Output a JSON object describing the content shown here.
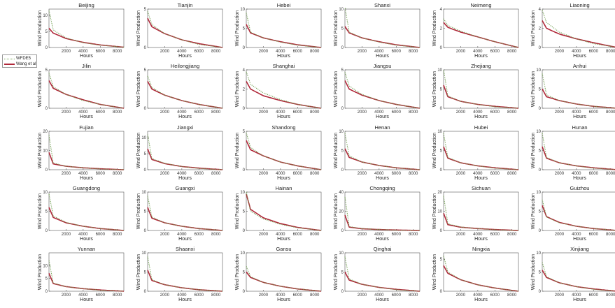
{
  "chart_data": {
    "type": "line",
    "xlabel": "Hours",
    "ylabel": "Wind Production",
    "xlim": [
      0,
      8760
    ],
    "x_ticks": [
      "2000",
      "4000",
      "6000",
      "8000"
    ],
    "legend": {
      "placement": "left",
      "entries": [
        {
          "name": "WFDE5",
          "color": "#7aa65a",
          "style": "dotted"
        },
        {
          "name": "Wang et al",
          "color": "#b0283a",
          "style": "solid"
        }
      ]
    },
    "panels": [
      {
        "title": "Beijing",
        "ylim": [
          0,
          12
        ],
        "yticks": [
          0,
          5,
          10
        ],
        "series": [
          {
            "name": "WFDE5",
            "values": [
              11.5,
              5.5,
              3.0,
              1.5,
              0.7,
              0.1
            ]
          },
          {
            "name": "Wang et al",
            "values": [
              6.0,
              4.5,
              2.8,
              1.6,
              0.8,
              0.1
            ]
          }
        ]
      },
      {
        "title": "Tianjin",
        "ylim": [
          0,
          5
        ],
        "yticks": [
          0,
          5
        ],
        "series": [
          {
            "name": "WFDE5",
            "values": [
              4.7,
              3.0,
              1.8,
              1.0,
              0.4,
              0.0
            ]
          },
          {
            "name": "Wang et al",
            "values": [
              3.8,
              2.7,
              1.8,
              1.0,
              0.5,
              0.0
            ]
          }
        ]
      },
      {
        "title": "Hebei",
        "ylim": [
          0,
          10
        ],
        "yticks": [
          0,
          5,
          10
        ],
        "series": [
          {
            "name": "WFDE5",
            "values": [
              9.0,
              4.0,
              2.5,
              1.4,
              0.6,
              0.0
            ]
          },
          {
            "name": "Wang et al",
            "values": [
              6.0,
              3.8,
              2.5,
              1.5,
              0.7,
              0.0
            ]
          }
        ]
      },
      {
        "title": "Shanxi",
        "ylim": [
          0,
          10
        ],
        "yticks": [
          0,
          5,
          10
        ],
        "series": [
          {
            "name": "WFDE5",
            "values": [
              10.5,
              4.0,
              2.5,
              1.4,
              0.6,
              0.0
            ]
          },
          {
            "name": "Wang et al",
            "values": [
              5.5,
              3.8,
              2.5,
              1.5,
              0.7,
              0.0
            ]
          }
        ]
      },
      {
        "title": "Neimeng",
        "ylim": [
          0,
          4
        ],
        "yticks": [
          0,
          2,
          4
        ],
        "series": [
          {
            "name": "WFDE5",
            "values": [
              3.0,
              2.3,
              1.7,
              1.1,
              0.6,
              0.0
            ]
          },
          {
            "name": "Wang et al",
            "values": [
              2.6,
              2.1,
              1.6,
              1.1,
              0.6,
              0.0
            ]
          }
        ]
      },
      {
        "title": "Liaoning",
        "ylim": [
          0,
          4
        ],
        "yticks": [
          0,
          2,
          4
        ],
        "series": [
          {
            "name": "WFDE5",
            "values": [
              3.9,
              2.6,
              1.6,
              0.9,
              0.4,
              0.0
            ]
          },
          {
            "name": "Wang et al",
            "values": [
              2.8,
              2.0,
              1.4,
              0.9,
              0.5,
              0.0
            ]
          }
        ]
      },
      {
        "title": "Jilin",
        "ylim": [
          0,
          5
        ],
        "yticks": [
          0,
          5
        ],
        "series": [
          {
            "name": "WFDE5",
            "values": [
              4.6,
              2.8,
              1.8,
              1.0,
              0.5,
              0.0
            ]
          },
          {
            "name": "Wang et al",
            "values": [
              3.6,
              2.6,
              1.8,
              1.1,
              0.5,
              0.0
            ]
          }
        ]
      },
      {
        "title": "Heilongjiang",
        "ylim": [
          0,
          5
        ],
        "yticks": [
          0,
          5
        ],
        "series": [
          {
            "name": "WFDE5",
            "values": [
              4.2,
              2.7,
              1.7,
              1.0,
              0.5,
              0.0
            ]
          },
          {
            "name": "Wang et al",
            "values": [
              3.5,
              2.5,
              1.7,
              1.0,
              0.5,
              0.0
            ]
          }
        ]
      },
      {
        "title": "Shanghai",
        "ylim": [
          0,
          4
        ],
        "yticks": [
          0,
          2,
          4
        ],
        "series": [
          {
            "name": "WFDE5",
            "values": [
              3.8,
              2.5,
              1.6,
              0.9,
              0.4,
              0.0
            ]
          },
          {
            "name": "Wang et al",
            "values": [
              2.8,
              2.0,
              1.3,
              0.8,
              0.4,
              0.0
            ]
          }
        ]
      },
      {
        "title": "Jiangsu",
        "ylim": [
          0,
          5
        ],
        "yticks": [
          0,
          5
        ],
        "series": [
          {
            "name": "WFDE5",
            "values": [
              4.7,
              2.9,
              1.8,
              1.0,
              0.5,
              0.0
            ]
          },
          {
            "name": "Wang et al",
            "values": [
              3.6,
              2.5,
              1.7,
              1.0,
              0.5,
              0.0
            ]
          }
        ]
      },
      {
        "title": "Zhejiang",
        "ylim": [
          0,
          10
        ],
        "yticks": [
          0,
          5,
          10
        ],
        "series": [
          {
            "name": "WFDE5",
            "values": [
              10.0,
              3.2,
              1.8,
              1.0,
              0.4,
              0.0
            ]
          },
          {
            "name": "Wang et al",
            "values": [
              6.0,
              3.0,
              1.8,
              1.0,
              0.5,
              0.0
            ]
          }
        ]
      },
      {
        "title": "Anhui",
        "ylim": [
          0,
          10
        ],
        "yticks": [
          0,
          5,
          10
        ],
        "series": [
          {
            "name": "WFDE5",
            "values": [
              9.0,
              3.5,
              2.0,
              1.1,
              0.5,
              0.0
            ]
          },
          {
            "name": "Wang et al",
            "values": [
              5.0,
              3.0,
              2.0,
              1.1,
              0.5,
              0.0
            ]
          }
        ]
      },
      {
        "title": "Fujian",
        "ylim": [
          0,
          20
        ],
        "yticks": [
          0,
          10,
          20
        ],
        "series": [
          {
            "name": "WFDE5",
            "values": [
              18.0,
              3.5,
              1.8,
              1.0,
              0.4,
              0.0
            ]
          },
          {
            "name": "Wang et al",
            "values": [
              9.0,
              3.0,
              1.8,
              1.0,
              0.5,
              0.0
            ]
          }
        ]
      },
      {
        "title": "Jiangxi",
        "ylim": [
          0,
          12
        ],
        "yticks": [
          0,
          5,
          10
        ],
        "series": [
          {
            "name": "WFDE5",
            "values": [
              11.0,
              3.5,
              2.0,
              1.0,
              0.4,
              0.0
            ]
          },
          {
            "name": "Wang et al",
            "values": [
              6.5,
              3.2,
              1.9,
              1.0,
              0.5,
              0.0
            ]
          }
        ]
      },
      {
        "title": "Shandong",
        "ylim": [
          0,
          5
        ],
        "yticks": [
          0,
          5
        ],
        "series": [
          {
            "name": "WFDE5",
            "values": [
              4.8,
              2.9,
              1.8,
              1.0,
              0.5,
              0.0
            ]
          },
          {
            "name": "Wang et al",
            "values": [
              3.8,
              2.6,
              1.8,
              1.0,
              0.5,
              0.0
            ]
          }
        ]
      },
      {
        "title": "Henan",
        "ylim": [
          0,
          10
        ],
        "yticks": [
          0,
          5,
          10
        ],
        "series": [
          {
            "name": "WFDE5",
            "values": [
              9.5,
              3.6,
              2.0,
              1.1,
              0.5,
              0.0
            ]
          },
          {
            "name": "Wang et al",
            "values": [
              5.5,
              3.2,
              2.0,
              1.1,
              0.5,
              0.0
            ]
          }
        ]
      },
      {
        "title": "Hubei",
        "ylim": [
          0,
          10
        ],
        "yticks": [
          0,
          5,
          10
        ],
        "series": [
          {
            "name": "WFDE5",
            "values": [
              9.5,
              3.2,
              1.8,
              1.0,
              0.4,
              0.0
            ]
          },
          {
            "name": "Wang et al",
            "values": [
              6.0,
              3.0,
              1.8,
              1.0,
              0.5,
              0.0
            ]
          }
        ]
      },
      {
        "title": "Hunan",
        "ylim": [
          0,
          10
        ],
        "yticks": [
          0,
          5,
          10
        ],
        "series": [
          {
            "name": "WFDE5",
            "values": [
              9.5,
              3.2,
              1.8,
              1.0,
              0.4,
              0.0
            ]
          },
          {
            "name": "Wang et al",
            "values": [
              6.0,
              3.0,
              1.8,
              1.0,
              0.5,
              0.0
            ]
          }
        ]
      },
      {
        "title": "Guangdong",
        "ylim": [
          0,
          10
        ],
        "yticks": [
          0,
          5,
          10
        ],
        "series": [
          {
            "name": "WFDE5",
            "values": [
              9.5,
              3.8,
              2.1,
              1.1,
              0.5,
              0.0
            ]
          },
          {
            "name": "Wang et al",
            "values": [
              6.0,
              3.4,
              2.0,
              1.1,
              0.5,
              0.0
            ]
          }
        ]
      },
      {
        "title": "Guangxi",
        "ylim": [
          0,
          10
        ],
        "yticks": [
          0,
          5,
          10
        ],
        "series": [
          {
            "name": "WFDE5",
            "values": [
              9.0,
              3.5,
              2.0,
              1.1,
              0.5,
              0.0
            ]
          },
          {
            "name": "Wang et al",
            "values": [
              6.0,
              3.2,
              2.0,
              1.1,
              0.5,
              0.0
            ]
          }
        ]
      },
      {
        "title": "Hainan",
        "ylim": [
          0,
          10
        ],
        "yticks": [
          0,
          5,
          10
        ],
        "series": [
          {
            "name": "WFDE5",
            "values": [
              10.0,
              5.0,
              3.0,
              1.6,
              0.7,
              0.0
            ]
          },
          {
            "name": "Wang et al",
            "values": [
              9.5,
              5.5,
              3.3,
              1.8,
              0.8,
              0.0
            ]
          }
        ]
      },
      {
        "title": "Chongqing",
        "ylim": [
          0,
          40
        ],
        "yticks": [
          0,
          20,
          40
        ],
        "series": [
          {
            "name": "WFDE5",
            "values": [
              35.0,
              4.0,
              2.0,
              1.0,
              0.4,
              0.0
            ]
          },
          {
            "name": "Wang et al",
            "values": [
              16.0,
              3.5,
              1.8,
              1.0,
              0.5,
              0.0
            ]
          }
        ]
      },
      {
        "title": "Sichuan",
        "ylim": [
          0,
          20
        ],
        "yticks": [
          0,
          10,
          20
        ],
        "series": [
          {
            "name": "WFDE5",
            "values": [
              18.0,
              3.5,
              1.8,
              1.0,
              0.4,
              0.0
            ]
          },
          {
            "name": "Wang et al",
            "values": [
              9.0,
              3.0,
              1.7,
              1.0,
              0.5,
              0.0
            ]
          }
        ]
      },
      {
        "title": "Guizhou",
        "ylim": [
          0,
          10
        ],
        "yticks": [
          0,
          5,
          10
        ],
        "series": [
          {
            "name": "WFDE5",
            "values": [
              8.0,
              3.5,
              2.0,
              1.1,
              0.5,
              0.0
            ]
          },
          {
            "name": "Wang et al",
            "values": [
              6.5,
              3.6,
              2.1,
              1.1,
              0.5,
              0.0
            ]
          }
        ]
      },
      {
        "title": "Yunnan",
        "ylim": [
          0,
          15
        ],
        "yticks": [
          0,
          5,
          10
        ],
        "series": [
          {
            "name": "WFDE5",
            "values": [
              12.0,
              3.2,
              1.8,
              1.0,
              0.4,
              0.0
            ]
          },
          {
            "name": "Wang et al",
            "values": [
              7.0,
              3.0,
              1.8,
              1.0,
              0.5,
              0.0
            ]
          }
        ]
      },
      {
        "title": "Shaanxi",
        "ylim": [
          0,
          10
        ],
        "yticks": [
          0,
          5,
          10
        ],
        "series": [
          {
            "name": "WFDE5",
            "values": [
              9.0,
              3.0,
              1.7,
              0.9,
              0.4,
              0.0
            ]
          },
          {
            "name": "Wang et al",
            "values": [
              5.5,
              2.8,
              1.7,
              0.9,
              0.4,
              0.0
            ]
          }
        ]
      },
      {
        "title": "Gansu",
        "ylim": [
          0,
          10
        ],
        "yticks": [
          0,
          5,
          10
        ],
        "series": [
          {
            "name": "WFDE5",
            "values": [
              6.5,
              3.8,
              2.3,
              1.3,
              0.6,
              0.0
            ]
          },
          {
            "name": "Wang et al",
            "values": [
              5.0,
              3.6,
              2.3,
              1.3,
              0.6,
              0.0
            ]
          }
        ]
      },
      {
        "title": "Qinghai",
        "ylim": [
          0,
          10
        ],
        "yticks": [
          0,
          5,
          10
        ],
        "series": [
          {
            "name": "WFDE5",
            "values": [
              9.0,
              3.2,
              1.8,
              1.0,
              0.4,
              0.0
            ]
          },
          {
            "name": "Wang et al",
            "values": [
              5.0,
              2.9,
              1.8,
              1.0,
              0.5,
              0.0
            ]
          }
        ]
      },
      {
        "title": "Ningxia",
        "ylim": [
          0,
          6
        ],
        "yticks": [
          0,
          5
        ],
        "series": [
          {
            "name": "WFDE5",
            "values": [
              5.5,
              3.0,
              1.8,
              1.0,
              0.5,
              0.0
            ]
          },
          {
            "name": "Wang et al",
            "values": [
              4.0,
              2.8,
              1.8,
              1.0,
              0.5,
              0.0
            ]
          }
        ]
      },
      {
        "title": "Xinjiang",
        "ylim": [
          0,
          10
        ],
        "yticks": [
          0,
          5,
          10
        ],
        "series": [
          {
            "name": "WFDE5",
            "values": [
              7.5,
              3.8,
              2.2,
              1.2,
              0.5,
              0.0
            ]
          },
          {
            "name": "Wang et al",
            "values": [
              5.5,
              3.6,
              2.2,
              1.2,
              0.6,
              0.0
            ]
          }
        ]
      }
    ],
    "x_points": [
      0,
      500,
      2000,
      4000,
      6000,
      8760
    ]
  }
}
